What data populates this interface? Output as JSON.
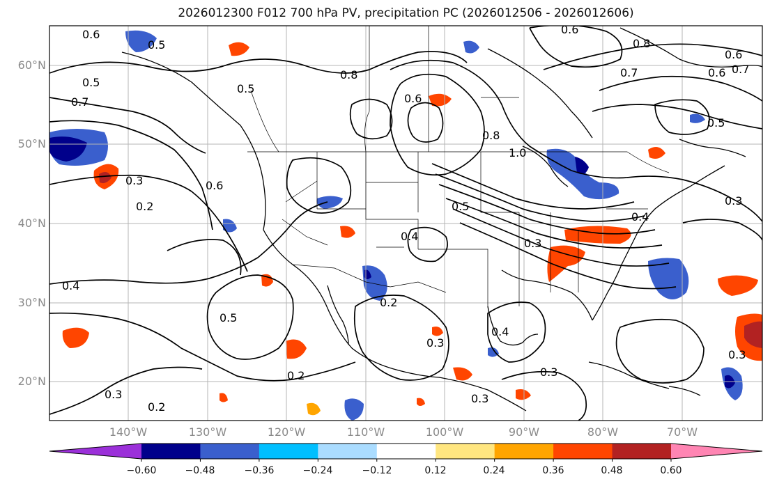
{
  "title": "2026012300 F012 700 hPa PV, precipitation PC (2026012506 - 2026012606)",
  "latitude_labels": [
    "60°N",
    "50°N",
    "40°N",
    "30°N",
    "20°N"
  ],
  "longitude_labels": [
    "140°W",
    "130°W",
    "120°W",
    "110°W",
    "100°W",
    "90°W",
    "80°W",
    "70°W"
  ],
  "contour_labels": [
    "0.6",
    "0.5",
    "0.5",
    "0.7",
    "0.5",
    "0.8",
    "0.6",
    "0.6",
    "0.8",
    "0.6",
    "0.7",
    "0.6",
    "0.7",
    "0.5",
    "0.8",
    "1.0",
    "0.5",
    "0.3",
    "0.2",
    "0.6",
    "0.4",
    "0.4",
    "0.3",
    "0.3",
    "0.4",
    "0.5",
    "0.2",
    "0.3",
    "0.2",
    "0.2",
    "0.4",
    "0.3",
    "0.3",
    "0.3",
    "0.3"
  ],
  "colorbar": {
    "ticks": [
      "−0.60",
      "−0.48",
      "−0.36",
      "−0.24",
      "−0.12",
      "0.12",
      "0.24",
      "0.36",
      "0.48",
      "0.60"
    ],
    "colors": [
      "#9b30d9",
      "#00008b",
      "#3a5fcd",
      "#00bfff",
      "#aadcff",
      "#ffffff",
      "#ffe680",
      "#ffa500",
      "#ff4500",
      "#b22222",
      "#ff85b3"
    ]
  }
}
